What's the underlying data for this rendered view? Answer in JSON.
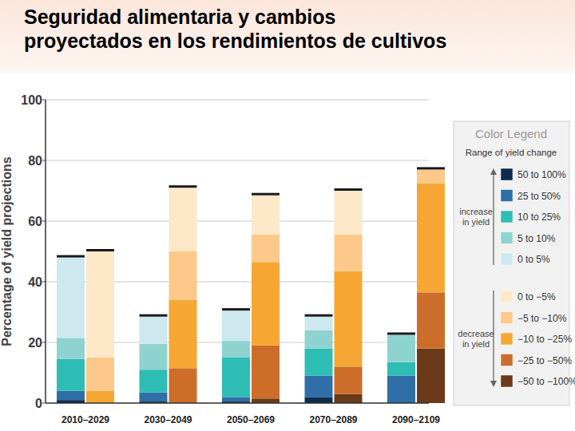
{
  "chart_data": {
    "type": "bar",
    "title": "Seguridad alimentaria y cambios\nproyectados en los rendimientos de cultivos",
    "ylabel": "Percentage of yield projections",
    "categories": [
      "2010–2029",
      null,
      "2030–2049",
      null,
      "2050–2069",
      null,
      "2070–2089",
      null,
      "2090–2109",
      null
    ],
    "ylim": [
      0,
      100
    ],
    "yticks": [
      0,
      20,
      40,
      60,
      80,
      100
    ],
    "grid": true,
    "stacked": true,
    "legend": "right",
    "legend_title": "Color Legend",
    "legend_subtitle": "Range of yield change",
    "legend_groups": [
      "increase in yield",
      "decrease in yield"
    ],
    "series": [
      {
        "name": "50 to 100%",
        "color": "#0d2c4e",
        "values": [
          1,
          null,
          0.5,
          null,
          0.5,
          null,
          2,
          null,
          0,
          null
        ]
      },
      {
        "name": "25 to 50%",
        "color": "#2f6ea6",
        "values": [
          3,
          null,
          3,
          null,
          1.5,
          null,
          7,
          null,
          9,
          null
        ]
      },
      {
        "name": "10 to 25%",
        "color": "#2ebdb5",
        "values": [
          10.5,
          null,
          7.5,
          null,
          13,
          null,
          9,
          null,
          4.5,
          null
        ]
      },
      {
        "name": "5 to 10%",
        "color": "#8fd3d0",
        "values": [
          7,
          null,
          8.5,
          null,
          5.5,
          null,
          6,
          null,
          9,
          null
        ]
      },
      {
        "name": "0 to 5%",
        "color": "#cde8ee",
        "values": [
          26.5,
          null,
          9,
          null,
          10,
          null,
          4.5,
          null,
          0,
          null
        ]
      },
      {
        "name": "0 to −5%",
        "color": "#fde9c8",
        "values": [
          null,
          35,
          null,
          21,
          null,
          13,
          null,
          14.5,
          null,
          0
        ]
      },
      {
        "name": "−5 to −10%",
        "color": "#fcc98a",
        "values": [
          null,
          11,
          null,
          16,
          null,
          9,
          null,
          12,
          null,
          4.5
        ]
      },
      {
        "name": "−10 to −25%",
        "color": "#f6a733",
        "values": [
          null,
          4,
          null,
          22.5,
          null,
          27.5,
          null,
          31.5,
          null,
          36
        ]
      },
      {
        "name": "−25 to −50%",
        "color": "#cc6e2a",
        "values": [
          null,
          0,
          null,
          11.5,
          null,
          17.5,
          null,
          9,
          null,
          18.5
        ]
      },
      {
        "name": "−50 to −100%",
        "color": "#6b3a18",
        "values": [
          null,
          0,
          null,
          0,
          null,
          1.5,
          null,
          3,
          null,
          18
        ]
      }
    ]
  }
}
